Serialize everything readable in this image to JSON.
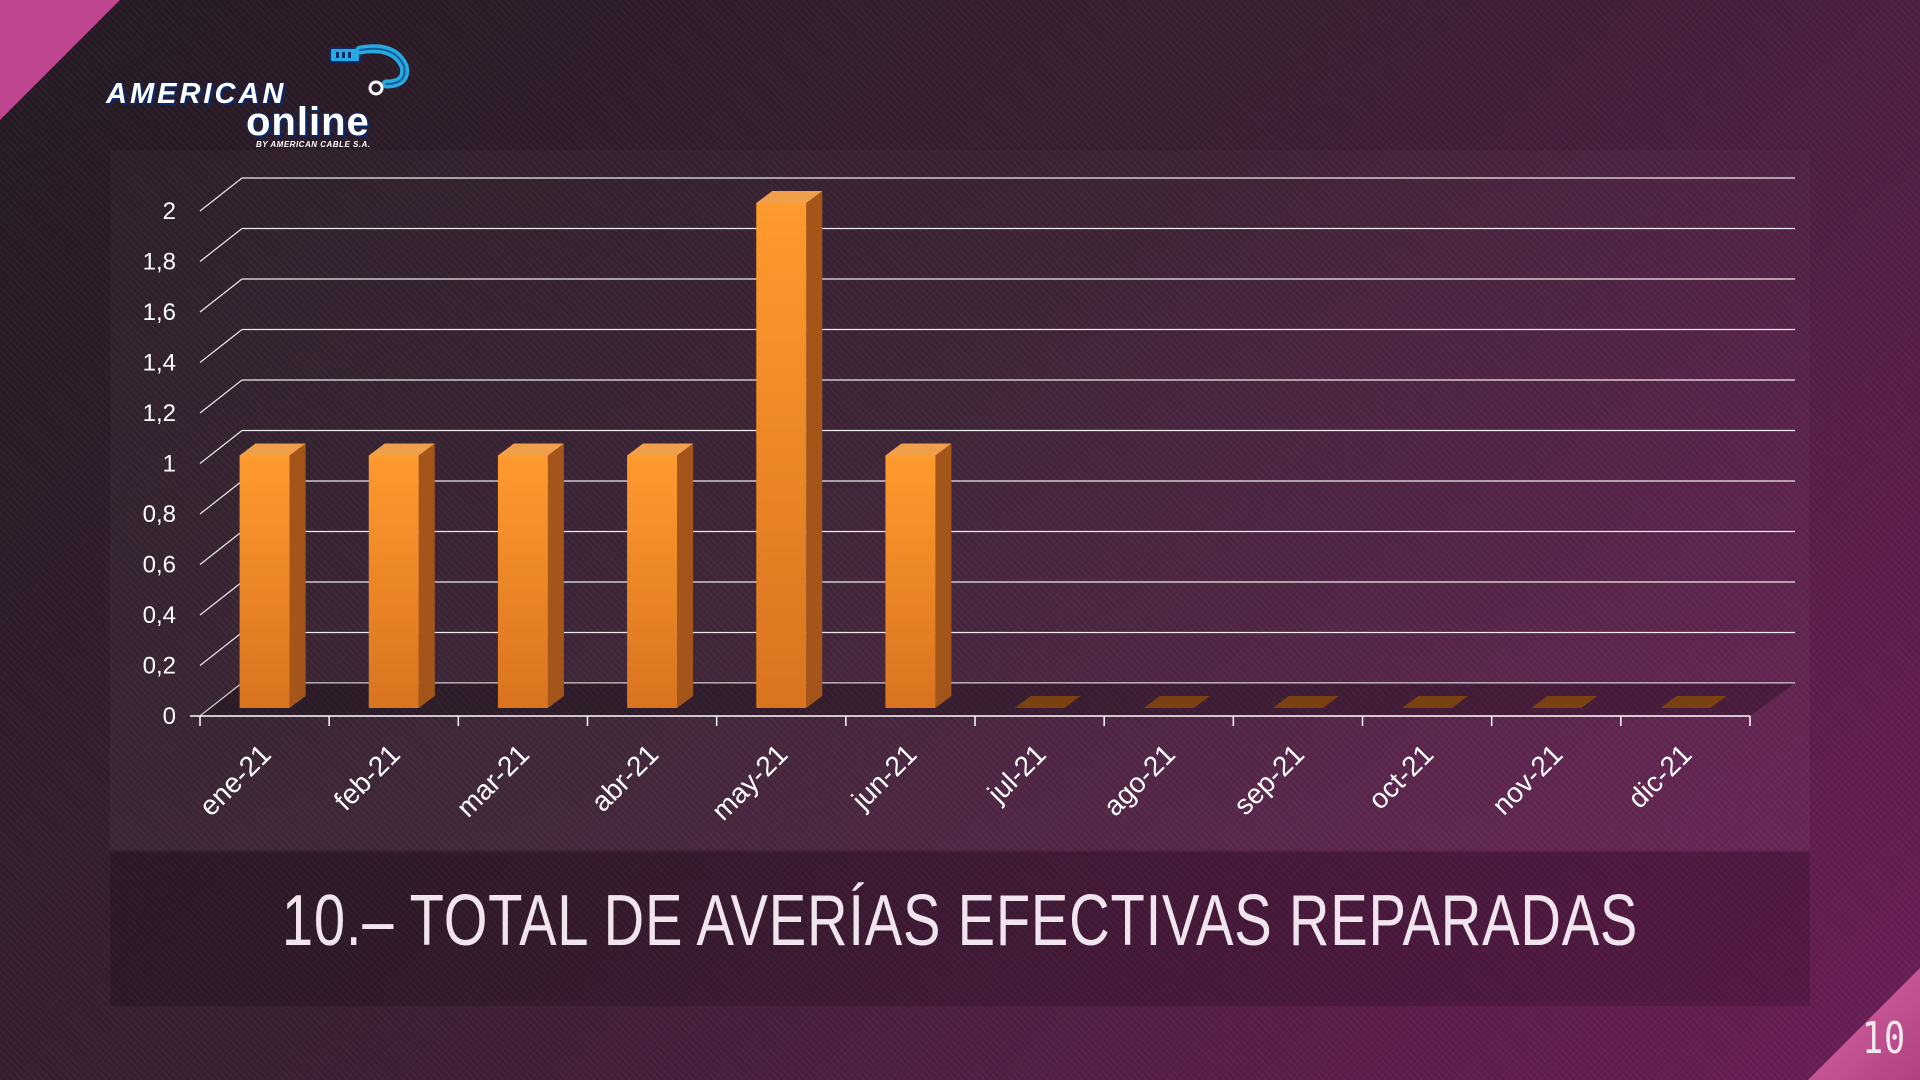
{
  "slide": {
    "title": "10.– TOTAL DE AVERÍAS EFECTIVAS REPARADAS",
    "page_number": "10"
  },
  "logo": {
    "word_1": "AMERICAN",
    "word_2": "online",
    "tagline": "BY AMERICAN CABLE S.A.",
    "icon": "ethernet-cable-icon",
    "colors": {
      "primary": "#27a9e1",
      "outline": "#0b2a6a"
    }
  },
  "chart_data": {
    "type": "bar",
    "categories": [
      "ene-21",
      "feb-21",
      "mar-21",
      "abr-21",
      "may-21",
      "jun-21",
      "jul-21",
      "ago-21",
      "sep-21",
      "oct-21",
      "nov-21",
      "dic-21"
    ],
    "values": [
      1,
      1,
      1,
      1,
      2,
      1,
      0,
      0,
      0,
      0,
      0,
      0
    ],
    "ylim": [
      0,
      2
    ],
    "yticks": [
      "0",
      "0,2",
      "0,4",
      "0,6",
      "0,8",
      "1",
      "1,2",
      "1,4",
      "1,6",
      "1,8",
      "2"
    ],
    "title": "",
    "xlabel": "",
    "ylabel": "",
    "grid": true,
    "legend": "none",
    "bar_color": "#f7922a"
  }
}
